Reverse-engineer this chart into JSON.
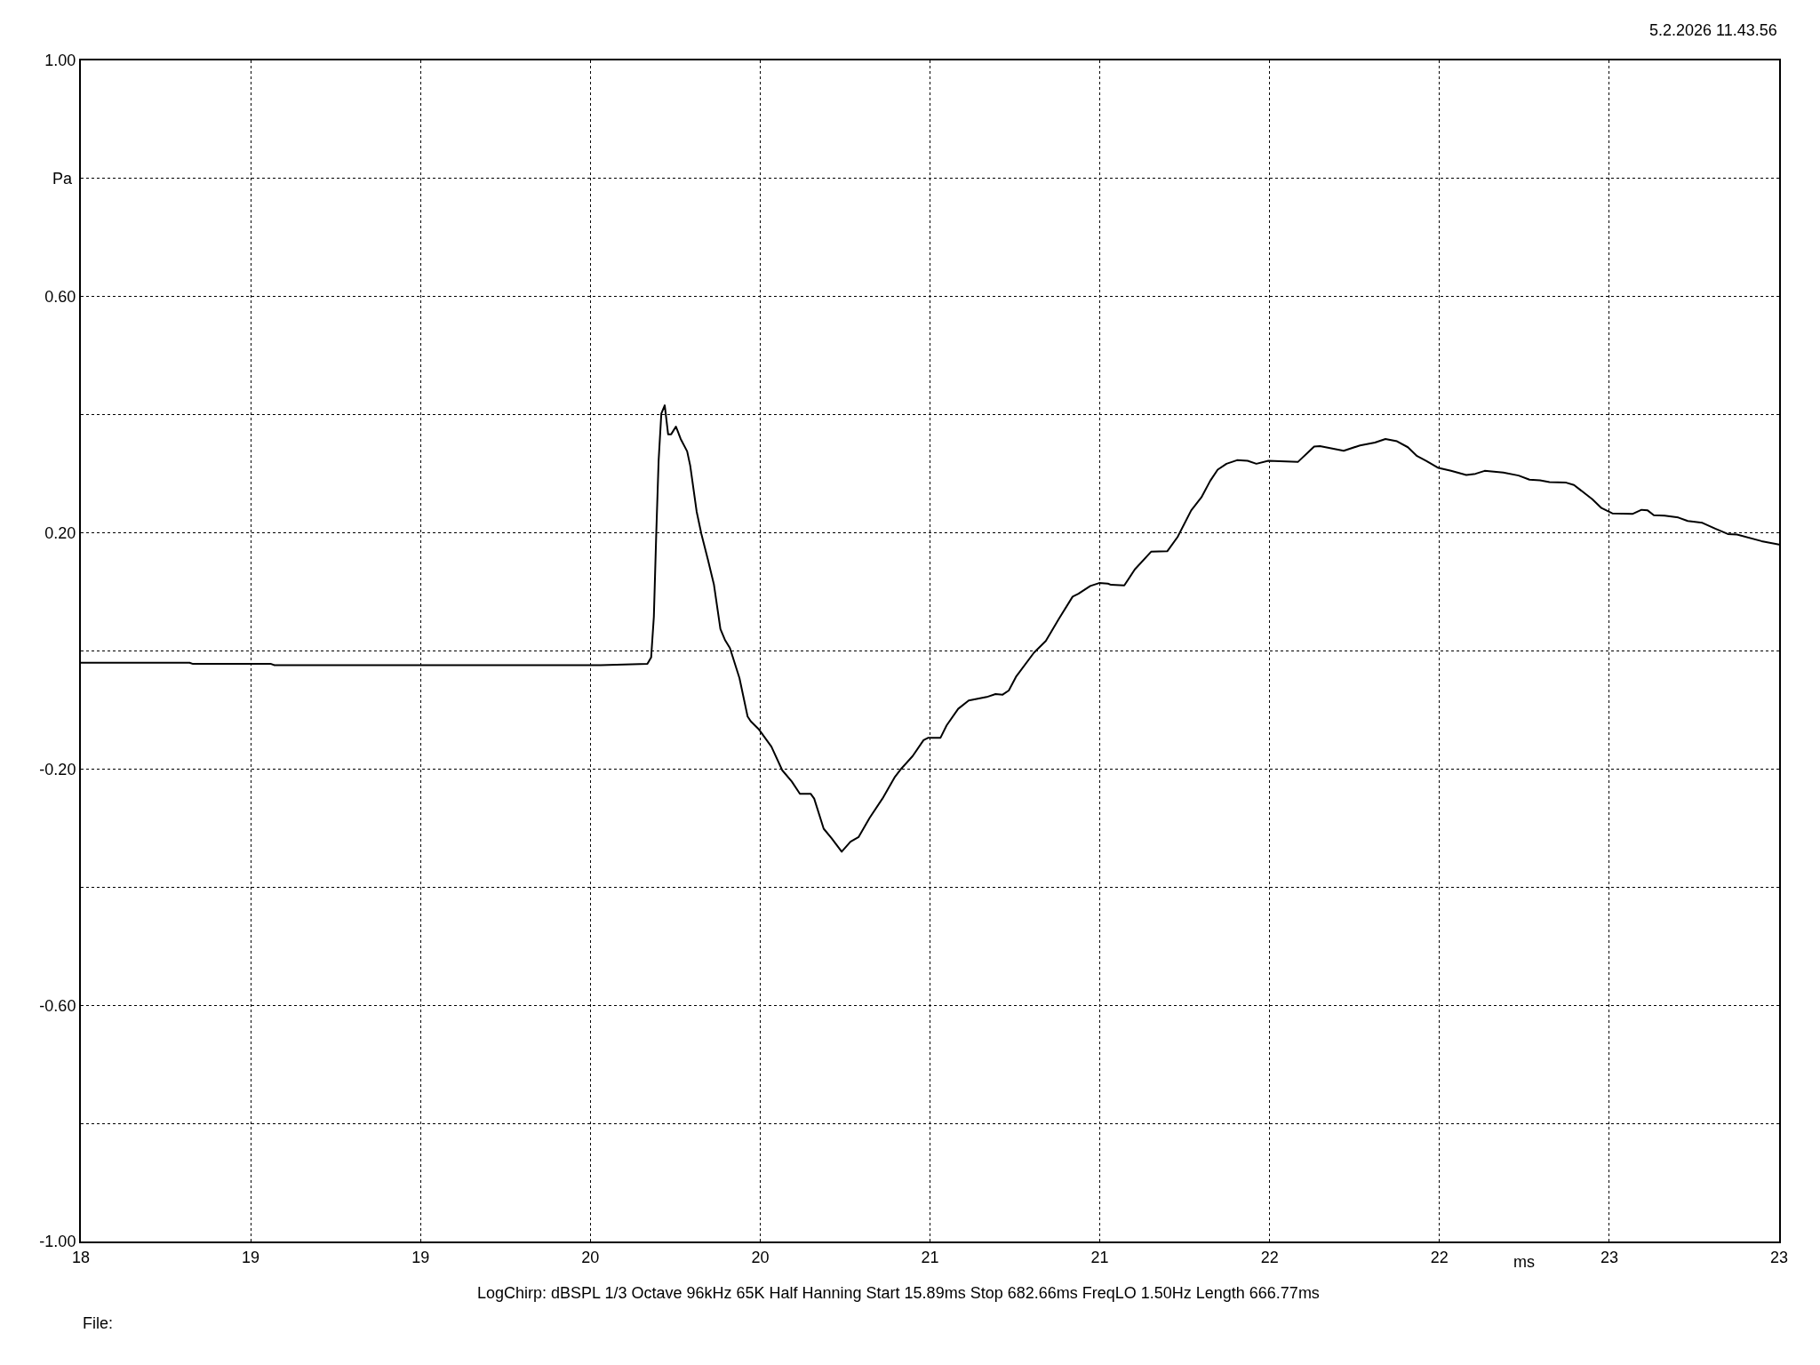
{
  "chart_data": {
    "type": "line",
    "x": [
      18,
      18.32,
      18.33,
      18.56,
      18.57,
      19.53,
      19.6,
      19.668,
      19.679,
      19.687,
      19.694,
      19.701,
      19.709,
      19.719,
      19.729,
      19.738,
      19.752,
      19.766,
      19.785,
      19.794,
      19.813,
      19.827,
      19.846,
      19.864,
      19.883,
      19.897,
      19.911,
      19.939,
      19.963,
      19.972,
      19.995,
      20.033,
      20.065,
      20.093,
      20.117,
      20.149,
      20.159,
      20.187,
      20.21,
      20.24,
      20.266,
      20.29,
      20.322,
      20.36,
      20.397,
      20.416,
      20.449,
      20.481,
      20.495,
      20.531,
      20.549,
      20.583,
      20.614,
      20.667,
      20.693,
      20.714,
      20.732,
      20.754,
      20.806,
      20.841,
      20.88,
      20.92,
      20.937,
      20.972,
      20.998,
      21.024,
      21.033,
      21.072,
      21.103,
      21.151,
      21.199,
      21.229,
      21.269,
      21.299,
      21.325,
      21.347,
      21.373,
      21.404,
      21.435,
      21.461,
      21.496,
      21.583,
      21.631,
      21.648,
      21.718,
      21.766,
      21.81,
      21.841,
      21.875,
      21.907,
      21.934,
      21.961,
      21.997,
      22.034,
      22.079,
      22.106,
      22.133,
      22.188,
      22.233,
      22.265,
      22.296,
      22.324,
      22.373,
      22.396,
      22.45,
      22.477,
      22.509,
      22.568,
      22.595,
      22.613,
      22.631,
      22.663,
      22.703,
      22.731,
      22.774,
      22.812,
      22.849,
      22.876,
      22.948,
      23
    ],
    "values": [
      -0.02,
      -0.02,
      -0.022,
      -0.022,
      -0.024,
      -0.024,
      -0.023,
      -0.022,
      -0.011,
      0.058,
      0.198,
      0.322,
      0.402,
      0.416,
      0.367,
      0.367,
      0.38,
      0.359,
      0.338,
      0.314,
      0.236,
      0.198,
      0.155,
      0.112,
      0.037,
      0.018,
      0.005,
      -0.046,
      -0.111,
      -0.119,
      -0.132,
      -0.162,
      -0.202,
      -0.221,
      -0.242,
      -0.242,
      -0.25,
      -0.301,
      -0.317,
      -0.34,
      -0.323,
      -0.315,
      -0.283,
      -0.25,
      -0.213,
      -0.199,
      -0.178,
      -0.151,
      -0.147,
      -0.147,
      -0.126,
      -0.098,
      -0.084,
      -0.078,
      -0.073,
      -0.074,
      -0.067,
      -0.043,
      -0.003,
      0.017,
      0.055,
      0.092,
      0.097,
      0.11,
      0.115,
      0.114,
      0.112,
      0.111,
      0.138,
      0.168,
      0.169,
      0.193,
      0.238,
      0.26,
      0.288,
      0.307,
      0.317,
      0.323,
      0.322,
      0.317,
      0.322,
      0.32,
      0.346,
      0.347,
      0.339,
      0.348,
      0.353,
      0.359,
      0.355,
      0.345,
      0.33,
      0.322,
      0.31,
      0.305,
      0.298,
      0.3,
      0.305,
      0.302,
      0.297,
      0.29,
      0.289,
      0.286,
      0.285,
      0.281,
      0.257,
      0.242,
      0.233,
      0.232,
      0.239,
      0.238,
      0.23,
      0.229,
      0.226,
      0.22,
      0.217,
      0.207,
      0.198,
      0.197,
      0.186,
      0.18
    ],
    "color": "#000000",
    "line_style": "solid",
    "xlabel": "ms",
    "ylabel": "Pa",
    "xlim": [
      18,
      23
    ],
    "xticks": [
      18,
      {
        "value": 18.5,
        "label": "19"
      },
      19,
      {
        "value": 19.5,
        "label": "20"
      },
      20,
      {
        "value": 20.5,
        "label": "21"
      },
      21,
      {
        "value": 21.5,
        "label": "22"
      },
      22,
      {
        "value": 22.5,
        "label": "23"
      },
      23
    ],
    "ylim": [
      -1,
      1
    ],
    "yticks": [
      {
        "value": 1,
        "label": "1.00"
      },
      {
        "value": 0.8,
        "label": null
      },
      {
        "value": 0.6,
        "label": "0.60"
      },
      {
        "value": 0.4,
        "label": null
      },
      {
        "value": 0.2,
        "label": "0.20"
      },
      {
        "value": 0,
        "label": null
      },
      {
        "value": -0.2,
        "label": "-0.20"
      },
      {
        "value": -0.4,
        "label": null
      },
      {
        "value": -0.6,
        "label": "-0.60"
      },
      {
        "value": -0.8,
        "label": null
      },
      {
        "value": -1,
        "label": "-1.00"
      }
    ],
    "grid": true,
    "annotations": [
      "5.2.2026 11.43.56",
      "LogChirp: dBSPL 1/3 Octave 96kHz 65K Half Hanning Start 15.89ms Stop 682.66ms FreqLO 1.50Hz Length 666.77ms",
      "File:"
    ]
  }
}
